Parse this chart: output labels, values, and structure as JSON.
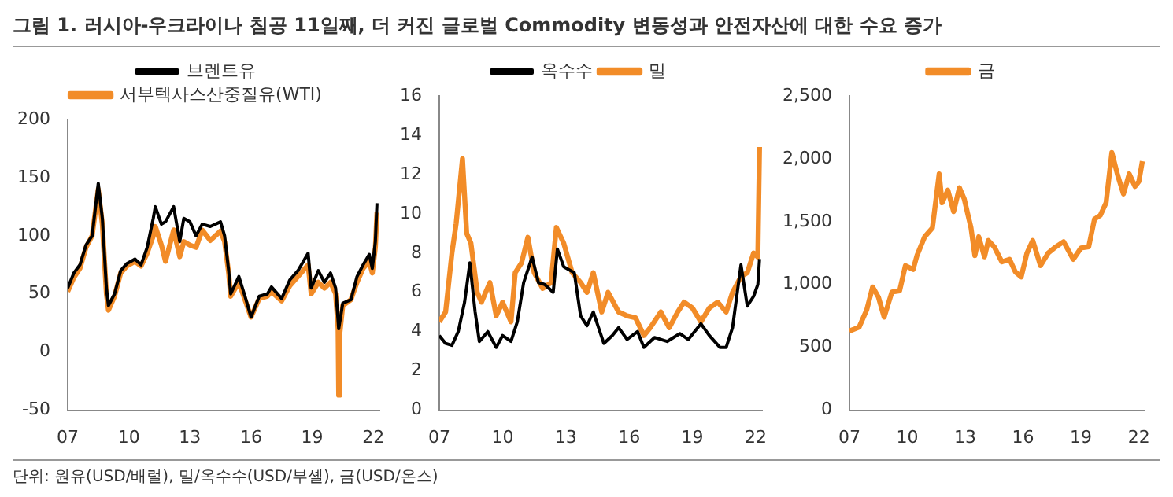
{
  "chart_data": [
    {
      "type": "line",
      "title": "그림 1. 러시아-우크라이나 침공 11일째, 더 커진 글로벌 Commodity 변동성과 안전자산에 대한 수요 증가",
      "annotations": [
        "단위: 원유(USD/배럴), 밀/옥수수(USD/부셸), 금(USD/온스)"
      ],
      "xlim": [
        2007,
        2022.3
      ],
      "xticks": [
        {
          "value": 2007,
          "label": "07"
        },
        {
          "value": 2010,
          "label": "10"
        },
        {
          "value": 2013,
          "label": "13"
        },
        {
          "value": 2016,
          "label": "16"
        },
        {
          "value": 2019,
          "label": "19"
        },
        {
          "value": 2022,
          "label": "22"
        }
      ],
      "ylim": [
        -50,
        200
      ],
      "yticks": [
        -50,
        0,
        50,
        100,
        150,
        200
      ],
      "legend": "top",
      "grid": false,
      "marker": "none",
      "series": [
        {
          "name": "서부텍사스산중질유(WTI)",
          "color": "#f28c28",
          "x": [
            2007.0,
            2007.3,
            2007.6,
            2007.9,
            2008.2,
            2008.5,
            2008.7,
            2008.9,
            2009.0,
            2009.3,
            2009.6,
            2009.9,
            2010.3,
            2010.6,
            2010.9,
            2011.2,
            2011.3,
            2011.6,
            2011.8,
            2012.2,
            2012.5,
            2012.7,
            2013.0,
            2013.3,
            2013.6,
            2014.0,
            2014.5,
            2014.7,
            2014.9,
            2015.0,
            2015.4,
            2015.7,
            2016.0,
            2016.4,
            2016.8,
            2017.0,
            2017.5,
            2017.9,
            2018.3,
            2018.8,
            2018.95,
            2019.3,
            2019.6,
            2019.9,
            2020.15,
            2020.27,
            2020.3,
            2020.35,
            2020.5,
            2020.9,
            2021.2,
            2021.5,
            2021.8,
            2021.95,
            2022.1,
            2022.18
          ],
          "values": [
            52,
            64,
            72,
            90,
            100,
            140,
            110,
            50,
            36,
            48,
            68,
            74,
            78,
            74,
            85,
            100,
            108,
            92,
            78,
            105,
            82,
            95,
            92,
            90,
            105,
            96,
            104,
            95,
            68,
            48,
            60,
            45,
            30,
            46,
            48,
            52,
            44,
            57,
            65,
            75,
            50,
            60,
            55,
            60,
            50,
            20,
            -37,
            15,
            40,
            45,
            60,
            72,
            78,
            68,
            90,
            120
          ]
        },
        {
          "name": "브렌트유",
          "color": "#000000",
          "x": [
            2007.0,
            2007.3,
            2007.6,
            2007.9,
            2008.2,
            2008.5,
            2008.7,
            2008.9,
            2009.0,
            2009.3,
            2009.6,
            2009.9,
            2010.3,
            2010.6,
            2010.9,
            2011.2,
            2011.3,
            2011.6,
            2011.8,
            2012.2,
            2012.5,
            2012.7,
            2013.0,
            2013.3,
            2013.6,
            2014.0,
            2014.5,
            2014.7,
            2014.9,
            2015.0,
            2015.4,
            2015.7,
            2016.0,
            2016.4,
            2016.8,
            2017.0,
            2017.5,
            2017.9,
            2018.3,
            2018.8,
            2018.95,
            2019.3,
            2019.6,
            2019.9,
            2020.15,
            2020.3,
            2020.5,
            2020.9,
            2021.2,
            2021.5,
            2021.8,
            2021.95,
            2022.1,
            2022.18
          ],
          "values": [
            55,
            68,
            75,
            92,
            100,
            145,
            115,
            55,
            40,
            50,
            70,
            76,
            80,
            75,
            90,
            115,
            125,
            110,
            112,
            125,
            95,
            115,
            112,
            100,
            110,
            108,
            112,
            100,
            70,
            50,
            65,
            48,
            30,
            48,
            50,
            56,
            46,
            62,
            70,
            85,
            55,
            70,
            60,
            68,
            55,
            20,
            42,
            45,
            65,
            75,
            84,
            72,
            95,
            128
          ]
        }
      ]
    },
    {
      "type": "line",
      "xlim": [
        2007,
        2022.3
      ],
      "xticks": [
        {
          "value": 2007,
          "label": "07"
        },
        {
          "value": 2010,
          "label": "10"
        },
        {
          "value": 2013,
          "label": "13"
        },
        {
          "value": 2016,
          "label": "16"
        },
        {
          "value": 2019,
          "label": "19"
        },
        {
          "value": 2022,
          "label": "22"
        }
      ],
      "ylim": [
        0,
        16
      ],
      "yticks": [
        0,
        2,
        4,
        6,
        8,
        10,
        12,
        14,
        16
      ],
      "legend": "top",
      "grid": false,
      "marker": "none",
      "series": [
        {
          "name": "밀",
          "color": "#f28c28",
          "x": [
            2007.0,
            2007.3,
            2007.6,
            2007.8,
            2008.1,
            2008.3,
            2008.5,
            2008.8,
            2009.0,
            2009.4,
            2009.7,
            2010.0,
            2010.4,
            2010.6,
            2010.9,
            2011.2,
            2011.5,
            2011.9,
            2012.3,
            2012.55,
            2012.9,
            2013.3,
            2013.7,
            2014.0,
            2014.3,
            2014.7,
            2015.0,
            2015.5,
            2015.9,
            2016.3,
            2016.7,
            2017.0,
            2017.5,
            2017.9,
            2018.3,
            2018.6,
            2019.0,
            2019.4,
            2019.8,
            2020.2,
            2020.6,
            2020.9,
            2021.3,
            2021.6,
            2021.9,
            2022.1,
            2022.18
          ],
          "values": [
            4.5,
            5,
            8,
            9.5,
            12.8,
            9,
            8.5,
            6,
            5.5,
            6.5,
            4.8,
            5.5,
            4.5,
            7,
            7.5,
            8.8,
            7,
            6.2,
            6.5,
            9.3,
            8.5,
            7,
            6.5,
            6,
            7,
            5,
            6,
            5,
            4.8,
            4.7,
            3.8,
            4.2,
            5,
            4.2,
            5,
            5.5,
            5.2,
            4.5,
            5.2,
            5.5,
            5,
            6,
            6.8,
            7,
            8,
            7.8,
            13.4
          ]
        },
        {
          "name": "옥수수",
          "color": "#000000",
          "x": [
            2007.0,
            2007.3,
            2007.6,
            2007.9,
            2008.2,
            2008.45,
            2008.7,
            2008.9,
            2009.3,
            2009.7,
            2010.0,
            2010.4,
            2010.7,
            2011.0,
            2011.4,
            2011.7,
            2012.0,
            2012.4,
            2012.6,
            2012.9,
            2013.4,
            2013.7,
            2014.0,
            2014.3,
            2014.8,
            2015.2,
            2015.5,
            2015.9,
            2016.4,
            2016.7,
            2017.2,
            2017.8,
            2018.4,
            2018.8,
            2019.4,
            2019.8,
            2020.3,
            2020.6,
            2020.9,
            2021.3,
            2021.6,
            2021.9,
            2022.1,
            2022.18
          ],
          "values": [
            3.8,
            3.4,
            3.3,
            4,
            5.5,
            7.5,
            5,
            3.5,
            4,
            3.2,
            3.8,
            3.5,
            4.5,
            6.5,
            7.8,
            6.5,
            6.4,
            6,
            8.2,
            7.3,
            7,
            4.8,
            4.3,
            5,
            3.4,
            3.8,
            4.2,
            3.6,
            4,
            3.2,
            3.7,
            3.5,
            3.9,
            3.6,
            4.4,
            3.8,
            3.2,
            3.2,
            4.2,
            7.4,
            5.3,
            5.8,
            6.4,
            7.7
          ]
        }
      ]
    },
    {
      "type": "line",
      "xlim": [
        2007,
        2022.3
      ],
      "xticks": [
        {
          "value": 2007,
          "label": "07"
        },
        {
          "value": 2010,
          "label": "10"
        },
        {
          "value": 2013,
          "label": "13"
        },
        {
          "value": 2016,
          "label": "16"
        },
        {
          "value": 2019,
          "label": "19"
        },
        {
          "value": 2022,
          "label": "22"
        }
      ],
      "ylim": [
        0,
        2500
      ],
      "yticks": [
        {
          "value": 0,
          "label": "0"
        },
        {
          "value": 500,
          "label": "500"
        },
        {
          "value": 1000,
          "label": "1,000"
        },
        {
          "value": 1500,
          "label": "1,500"
        },
        {
          "value": 2000,
          "label": "2,000"
        },
        {
          "value": 2500,
          "label": "2,500"
        }
      ],
      "legend": "top",
      "grid": false,
      "marker": "none",
      "series": [
        {
          "name": "금",
          "color": "#f28c28",
          "x": [
            2007.0,
            2007.5,
            2007.9,
            2008.2,
            2008.5,
            2008.8,
            2009.2,
            2009.6,
            2009.9,
            2010.3,
            2010.5,
            2010.9,
            2011.3,
            2011.65,
            2011.8,
            2012.1,
            2012.4,
            2012.7,
            2012.95,
            2013.3,
            2013.5,
            2013.7,
            2014.0,
            2014.2,
            2014.5,
            2014.9,
            2015.3,
            2015.6,
            2015.9,
            2016.2,
            2016.5,
            2016.9,
            2017.3,
            2017.7,
            2018.1,
            2018.6,
            2019.0,
            2019.4,
            2019.7,
            2020.0,
            2020.3,
            2020.6,
            2020.9,
            2021.2,
            2021.5,
            2021.8,
            2022.0,
            2022.18
          ],
          "values": [
            630,
            660,
            800,
            980,
            900,
            740,
            940,
            950,
            1150,
            1120,
            1230,
            1380,
            1450,
            1880,
            1650,
            1750,
            1580,
            1770,
            1680,
            1450,
            1230,
            1380,
            1220,
            1350,
            1300,
            1180,
            1200,
            1100,
            1060,
            1250,
            1350,
            1150,
            1250,
            1300,
            1340,
            1200,
            1290,
            1300,
            1520,
            1550,
            1650,
            2050,
            1870,
            1720,
            1880,
            1780,
            1820,
            1980
          ]
        }
      ]
    }
  ]
}
